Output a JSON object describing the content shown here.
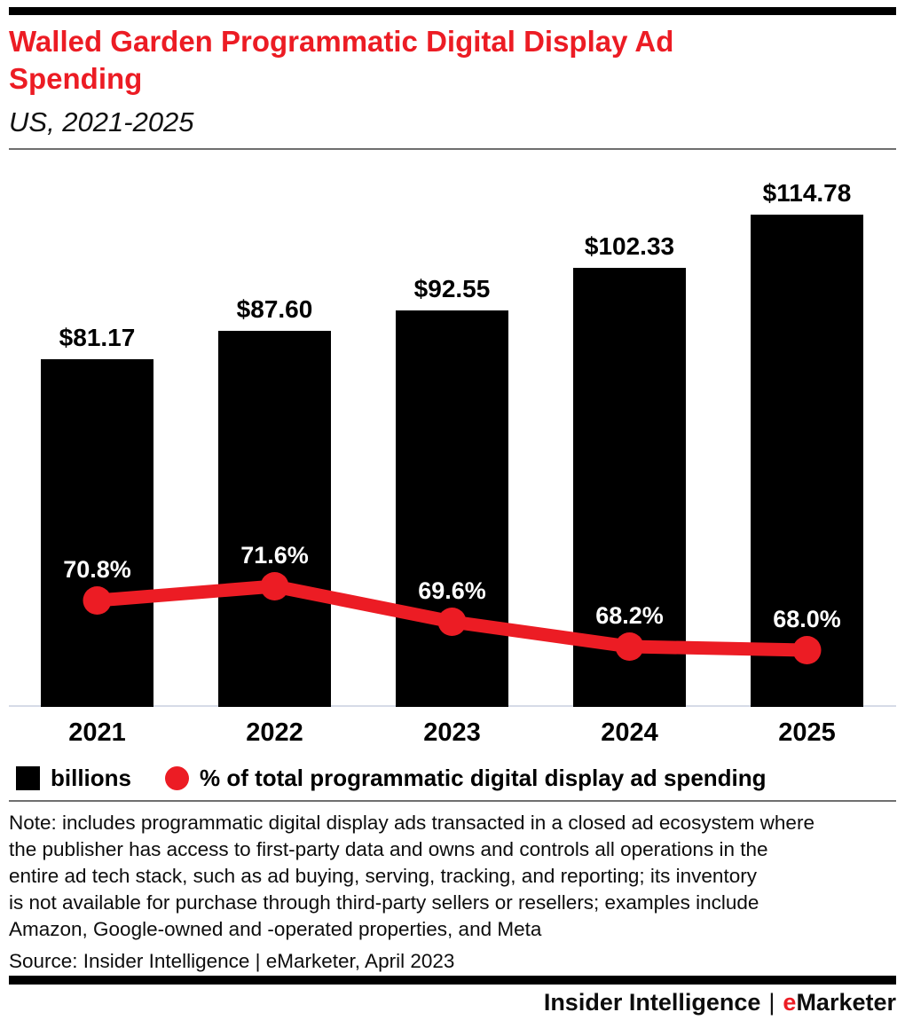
{
  "header": {
    "title_line1": "Walled Garden Programmatic Digital Display Ad",
    "title_line2": "Spending",
    "subtitle": "US, 2021-2025"
  },
  "chart_data": {
    "type": "bar",
    "title": "Walled Garden Programmatic Digital Display Ad Spending",
    "subtitle": "US, 2021-2025",
    "categories": [
      "2021",
      "2022",
      "2023",
      "2024",
      "2025"
    ],
    "series": [
      {
        "name": "billions",
        "type": "bar",
        "color": "#000000",
        "value_prefix": "$",
        "values": [
          81.17,
          87.6,
          92.55,
          102.33,
          114.78
        ],
        "labels": [
          "$81.17",
          "$87.60",
          "$92.55",
          "$102.33",
          "$114.78"
        ]
      },
      {
        "name": "% of total programmatic digital display ad spending",
        "type": "line",
        "color": "#EC1C24",
        "value_suffix": "%",
        "values": [
          70.8,
          71.6,
          69.6,
          68.2,
          68.0
        ],
        "labels": [
          "70.8%",
          "71.6%",
          "69.6%",
          "68.2%",
          "68.0%"
        ]
      }
    ],
    "xlabel": "",
    "ylabel": "",
    "ylim": [
      0,
      127
    ],
    "grid": false,
    "value_axis_visible": false,
    "legend_position": "bottom"
  },
  "legend": {
    "bar_label": "billions",
    "line_label": "% of total programmatic digital display ad spending"
  },
  "note": {
    "lines": [
      "Note: includes programmatic digital display ads transacted in a closed ad ecosystem where",
      "the publisher has access to first-party data and owns and controls all operations in the",
      "entire ad tech stack, such as ad buying, serving, tracking, and reporting; its inventory",
      "is not available for purchase through third-party sellers or resellers; examples include",
      "Amazon, Google-owned and -operated properties, and Meta"
    ]
  },
  "source": {
    "text": "Source: Insider Intelligence | eMarketer, April 2023"
  },
  "footer": {
    "company": "Insider Intelligence",
    "separator": "|",
    "brand_first_letter": "e",
    "brand_rest": "Marketer"
  },
  "colors": {
    "accent_red": "#EC1C24",
    "bar_black": "#000000",
    "axis_line_gray": "#d6dbe7",
    "divider_gray": "#6f6f6f"
  }
}
